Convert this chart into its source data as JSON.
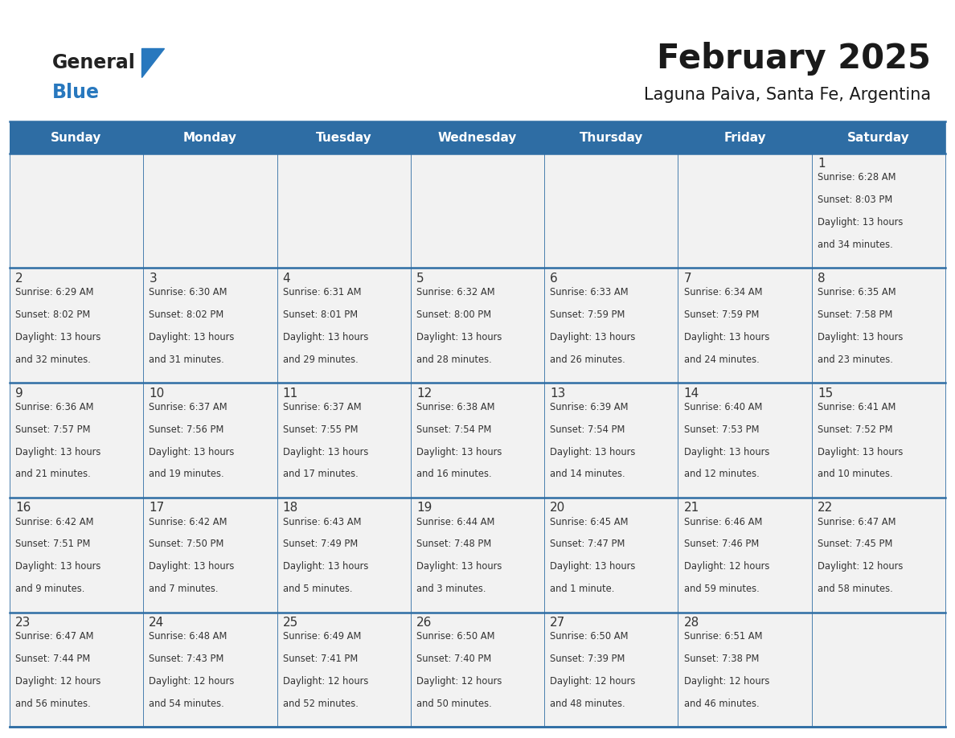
{
  "title": "February 2025",
  "subtitle": "Laguna Paiva, Santa Fe, Argentina",
  "header_bg": "#2E6DA4",
  "header_text": "#FFFFFF",
  "cell_bg": "#F2F2F2",
  "border_color": "#2E6DA4",
  "text_color": "#333333",
  "day_num_color": "#333333",
  "days_of_week": [
    "Sunday",
    "Monday",
    "Tuesday",
    "Wednesday",
    "Thursday",
    "Friday",
    "Saturday"
  ],
  "calendar_data": [
    [
      null,
      null,
      null,
      null,
      null,
      null,
      {
        "day": 1,
        "sunrise": "6:28 AM",
        "sunset": "8:03 PM",
        "daylight": "13 hours and 34 minutes."
      }
    ],
    [
      {
        "day": 2,
        "sunrise": "6:29 AM",
        "sunset": "8:02 PM",
        "daylight": "13 hours and 32 minutes."
      },
      {
        "day": 3,
        "sunrise": "6:30 AM",
        "sunset": "8:02 PM",
        "daylight": "13 hours and 31 minutes."
      },
      {
        "day": 4,
        "sunrise": "6:31 AM",
        "sunset": "8:01 PM",
        "daylight": "13 hours and 29 minutes."
      },
      {
        "day": 5,
        "sunrise": "6:32 AM",
        "sunset": "8:00 PM",
        "daylight": "13 hours and 28 minutes."
      },
      {
        "day": 6,
        "sunrise": "6:33 AM",
        "sunset": "7:59 PM",
        "daylight": "13 hours and 26 minutes."
      },
      {
        "day": 7,
        "sunrise": "6:34 AM",
        "sunset": "7:59 PM",
        "daylight": "13 hours and 24 minutes."
      },
      {
        "day": 8,
        "sunrise": "6:35 AM",
        "sunset": "7:58 PM",
        "daylight": "13 hours and 23 minutes."
      }
    ],
    [
      {
        "day": 9,
        "sunrise": "6:36 AM",
        "sunset": "7:57 PM",
        "daylight": "13 hours and 21 minutes."
      },
      {
        "day": 10,
        "sunrise": "6:37 AM",
        "sunset": "7:56 PM",
        "daylight": "13 hours and 19 minutes."
      },
      {
        "day": 11,
        "sunrise": "6:37 AM",
        "sunset": "7:55 PM",
        "daylight": "13 hours and 17 minutes."
      },
      {
        "day": 12,
        "sunrise": "6:38 AM",
        "sunset": "7:54 PM",
        "daylight": "13 hours and 16 minutes."
      },
      {
        "day": 13,
        "sunrise": "6:39 AM",
        "sunset": "7:54 PM",
        "daylight": "13 hours and 14 minutes."
      },
      {
        "day": 14,
        "sunrise": "6:40 AM",
        "sunset": "7:53 PM",
        "daylight": "13 hours and 12 minutes."
      },
      {
        "day": 15,
        "sunrise": "6:41 AM",
        "sunset": "7:52 PM",
        "daylight": "13 hours and 10 minutes."
      }
    ],
    [
      {
        "day": 16,
        "sunrise": "6:42 AM",
        "sunset": "7:51 PM",
        "daylight": "13 hours and 9 minutes."
      },
      {
        "day": 17,
        "sunrise": "6:42 AM",
        "sunset": "7:50 PM",
        "daylight": "13 hours and 7 minutes."
      },
      {
        "day": 18,
        "sunrise": "6:43 AM",
        "sunset": "7:49 PM",
        "daylight": "13 hours and 5 minutes."
      },
      {
        "day": 19,
        "sunrise": "6:44 AM",
        "sunset": "7:48 PM",
        "daylight": "13 hours and 3 minutes."
      },
      {
        "day": 20,
        "sunrise": "6:45 AM",
        "sunset": "7:47 PM",
        "daylight": "13 hours and 1 minute."
      },
      {
        "day": 21,
        "sunrise": "6:46 AM",
        "sunset": "7:46 PM",
        "daylight": "12 hours and 59 minutes."
      },
      {
        "day": 22,
        "sunrise": "6:47 AM",
        "sunset": "7:45 PM",
        "daylight": "12 hours and 58 minutes."
      }
    ],
    [
      {
        "day": 23,
        "sunrise": "6:47 AM",
        "sunset": "7:44 PM",
        "daylight": "12 hours and 56 minutes."
      },
      {
        "day": 24,
        "sunrise": "6:48 AM",
        "sunset": "7:43 PM",
        "daylight": "12 hours and 54 minutes."
      },
      {
        "day": 25,
        "sunrise": "6:49 AM",
        "sunset": "7:41 PM",
        "daylight": "12 hours and 52 minutes."
      },
      {
        "day": 26,
        "sunrise": "6:50 AM",
        "sunset": "7:40 PM",
        "daylight": "12 hours and 50 minutes."
      },
      {
        "day": 27,
        "sunrise": "6:50 AM",
        "sunset": "7:39 PM",
        "daylight": "12 hours and 48 minutes."
      },
      {
        "day": 28,
        "sunrise": "6:51 AM",
        "sunset": "7:38 PM",
        "daylight": "12 hours and 46 minutes."
      },
      null
    ]
  ]
}
